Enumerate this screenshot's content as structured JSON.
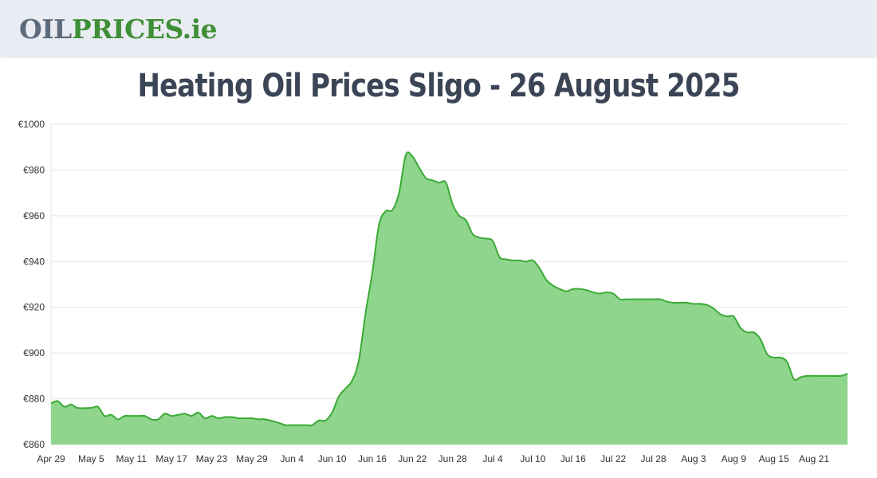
{
  "header": {
    "logo_oil": "OIL",
    "logo_prices": "PRICES",
    "logo_tld": ".ie"
  },
  "page_title": "Heating Oil Prices Sligo - 26 August 2025",
  "colors": {
    "line": "#3aaa35",
    "fill": "#8fd58d",
    "grid": "#e6e6e6",
    "logo_oil": "#5d6b7d",
    "logo_prices": "#3f8f36",
    "title": "#3b4556"
  },
  "chart_data": {
    "type": "area",
    "title": "",
    "xlabel": "",
    "ylabel": "",
    "ylim": [
      860,
      1000
    ],
    "yticks": [
      860,
      880,
      900,
      920,
      940,
      960,
      980,
      1000
    ],
    "ytick_labels": [
      "€860",
      "€880",
      "€900",
      "€920",
      "€940",
      "€960",
      "€980",
      "€1000"
    ],
    "xlim": [
      "2025-04-29",
      "2025-08-26"
    ],
    "xtick_labels": [
      "Apr 29",
      "May 5",
      "May 11",
      "May 17",
      "May 23",
      "May 29",
      "Jun 4",
      "Jun 10",
      "Jun 16",
      "Jun 22",
      "Jun 28",
      "Jul 4",
      "Jul 10",
      "Jul 16",
      "Jul 22",
      "Jul 28",
      "Aug 3",
      "Aug 9",
      "Aug 15",
      "Aug 21"
    ],
    "grid": true,
    "x": [
      "2025-04-29",
      "2025-04-30",
      "2025-05-01",
      "2025-05-02",
      "2025-05-03",
      "2025-05-05",
      "2025-05-06",
      "2025-05-07",
      "2025-05-08",
      "2025-05-09",
      "2025-05-10",
      "2025-05-11",
      "2025-05-12",
      "2025-05-13",
      "2025-05-14",
      "2025-05-15",
      "2025-05-16",
      "2025-05-17",
      "2025-05-18",
      "2025-05-19",
      "2025-05-20",
      "2025-05-21",
      "2025-05-22",
      "2025-05-23",
      "2025-05-24",
      "2025-05-25",
      "2025-05-26",
      "2025-05-27",
      "2025-05-28",
      "2025-05-29",
      "2025-05-30",
      "2025-05-31",
      "2025-06-02",
      "2025-06-03",
      "2025-06-04",
      "2025-06-05",
      "2025-06-06",
      "2025-06-07",
      "2025-06-08",
      "2025-06-09",
      "2025-06-10",
      "2025-06-11",
      "2025-06-12",
      "2025-06-13",
      "2025-06-14",
      "2025-06-15",
      "2025-06-16",
      "2025-06-17",
      "2025-06-18",
      "2025-06-19",
      "2025-06-20",
      "2025-06-21",
      "2025-06-22",
      "2025-06-23",
      "2025-06-24",
      "2025-06-25",
      "2025-06-26",
      "2025-06-27",
      "2025-06-28",
      "2025-06-29",
      "2025-06-30",
      "2025-07-01",
      "2025-07-02",
      "2025-07-03",
      "2025-07-04",
      "2025-07-05",
      "2025-07-06",
      "2025-07-07",
      "2025-07-08",
      "2025-07-09",
      "2025-07-10",
      "2025-07-11",
      "2025-07-12",
      "2025-07-13",
      "2025-07-14",
      "2025-07-15",
      "2025-07-16",
      "2025-07-17",
      "2025-07-18",
      "2025-07-19",
      "2025-07-20",
      "2025-07-21",
      "2025-07-22",
      "2025-07-23",
      "2025-07-24",
      "2025-07-25",
      "2025-07-26",
      "2025-07-27",
      "2025-07-28",
      "2025-07-29",
      "2025-07-30",
      "2025-07-31",
      "2025-08-01",
      "2025-08-02",
      "2025-08-03",
      "2025-08-04",
      "2025-08-05",
      "2025-08-06",
      "2025-08-07",
      "2025-08-08",
      "2025-08-09",
      "2025-08-10",
      "2025-08-11",
      "2025-08-12",
      "2025-08-13",
      "2025-08-14",
      "2025-08-15",
      "2025-08-16",
      "2025-08-17",
      "2025-08-18",
      "2025-08-19",
      "2025-08-20",
      "2025-08-21",
      "2025-08-22",
      "2025-08-23",
      "2025-08-24",
      "2025-08-25",
      "2025-08-26"
    ],
    "series": [
      {
        "values": [
          878,
          879,
          876.5,
          877.5,
          876,
          876,
          876.5,
          872.5,
          873,
          871,
          872.5,
          872.5,
          872.5,
          872.5,
          871,
          871,
          873.5,
          872.5,
          873,
          873.5,
          872.5,
          874,
          871.5,
          872.5,
          871.5,
          872,
          872,
          871.5,
          871.5,
          871.5,
          871,
          871,
          869.5,
          868.5,
          868.5,
          868.5,
          868.5,
          868.5,
          870.5,
          870.5,
          874,
          881,
          884.5,
          888,
          897,
          917.5,
          935,
          956,
          962,
          962.5,
          970,
          986.5,
          986,
          981,
          976.5,
          975.5,
          974.5,
          974.5,
          965,
          960,
          958,
          952,
          950.5,
          950,
          949,
          942,
          941,
          940.5,
          940.5,
          940,
          940.5,
          937,
          932,
          929.5,
          928,
          927,
          928,
          928,
          927.5,
          926.5,
          926,
          926.5,
          926,
          923.5,
          923.5,
          923.5,
          923.5,
          923.5,
          923.5,
          923.5,
          922.5,
          922,
          922,
          922,
          921.5,
          921.5,
          921,
          919.5,
          917,
          916,
          916,
          911,
          909,
          909,
          906,
          899.5,
          898,
          898,
          896,
          888.5,
          889.5,
          890,
          890,
          890,
          890,
          890,
          890,
          891
        ]
      }
    ]
  }
}
